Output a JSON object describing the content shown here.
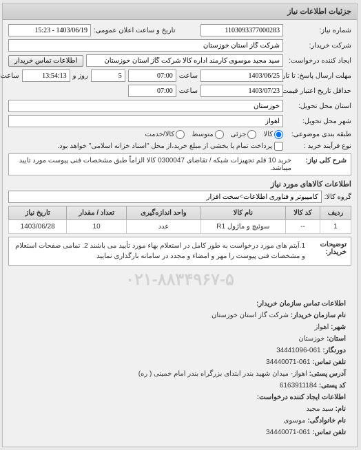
{
  "panel_title": "جزئیات اطلاعات نیاز",
  "fields": {
    "req_no_label": "شماره نیاز:",
    "req_no": "1103093377000283",
    "public_dt_label": "تاریخ و ساعت اعلان عمومی:",
    "public_dt": "1403/06/19 - 15:23",
    "buyer_co_label": "شرکت خریدار:",
    "buyer_co": "شرکت گاز استان خوزستان",
    "requester_label": "ایجاد کننده درخواست:",
    "requester": "سید مجید موسوی کارمند اداره کالا شرکت گاز استان خوزستان",
    "contact_btn": "اطلاعات تماس خریدار",
    "resp_deadline_label": "مهلت ارسال پاسخ: تا تاریخ:",
    "resp_date": "1403/06/25",
    "time_label": "ساعت",
    "resp_time": "07:00",
    "days_remain": "5",
    "days_label": "روز و",
    "time_remain": "13:54:13",
    "time_left_label": "ساعت باقی مانده",
    "valid_label": "حداقل تاریخ اعتبار قیمت: تا تاریخ:",
    "valid_date": "1403/07/23",
    "valid_time": "07:00",
    "deliver_prov_label": "استان محل تحویل:",
    "deliver_prov": "خوزستان",
    "deliver_city_label": "شهر محل تحویل:",
    "deliver_city": "اهواز",
    "category_label": "طبقه بندی موضوعی:",
    "cat_goods": "کالا",
    "cat_partial": "جزئی",
    "cat_medium": "متوسط",
    "cat_service": "کالا/خدمت",
    "buy_type_label": "نوع فرآیند خرید :",
    "buy_note": "پرداخت تمام یا بخشی از مبلغ خرید،از محل \"اسناد خزانه اسلامی\" خواهد بود.",
    "key_label": "شرح کلی نیاز:",
    "key_desc": "خرید 10 قلم تجهیزات شبکه / تقاضای 0300047 کالا الزاماً طبق مشخصات فنی پیوست مورد تایید میباشد.",
    "goods_section": "اطلاعات کالاهای مورد نیاز",
    "goods_group_label": "گروه کالا:",
    "goods_group": "کامپیوتر و فناوری اطلاعات>سخت افزار"
  },
  "table": {
    "headers": [
      "ردیف",
      "کد کالا",
      "نام کالا",
      "واحد اندازه‌گیری",
      "تعداد / مقدار",
      "تاریخ نیاز"
    ],
    "row": [
      "1",
      "--",
      "سوئیچ و ماژول R1",
      "عدد",
      "10",
      "1403/06/28"
    ]
  },
  "notes": {
    "label": "توضیحات خریدار:",
    "text": "1.آیتم های مورد درخواست به طور کامل در استعلام بهاء مورد تأیید می باشند 2. تمامی صفحات استعلام و مشخصات فنی پیوست را مهر و امضاء و مجدد در سامانه بارگذاری نمایید"
  },
  "watermark": "۰۲۱-۸۸۳۴۹۶۷-۵",
  "contact": {
    "title": "اطلاعات تماس سازمان خریدار:",
    "org_label": "نام سازمان خریدار:",
    "org": "شرکت گاز استان خوزستان",
    "city_label": "شهر:",
    "city": "اهواز",
    "province_label": "استان:",
    "province": "خوزستان",
    "fax_label": "دورنگار:",
    "fax": "061-34441096",
    "phone_label": "تلفن تماس:",
    "phone": "061-34440071",
    "addr_label": "آدرس پستی:",
    "addr": "اهواز- میدان شهید بندر ابتدای بزرگراه بندر امام خمینی ( ره)",
    "postal_label": "کد پستی:",
    "postal": "6163911184",
    "creator_title": "اطلاعات ایجاد کننده درخواست:",
    "name_label": "نام:",
    "name": "سید مجید",
    "family_label": "نام خانوادگی:",
    "family": "موسوی",
    "cphone_label": "تلفن تماس:",
    "cphone": "061-34440071"
  }
}
